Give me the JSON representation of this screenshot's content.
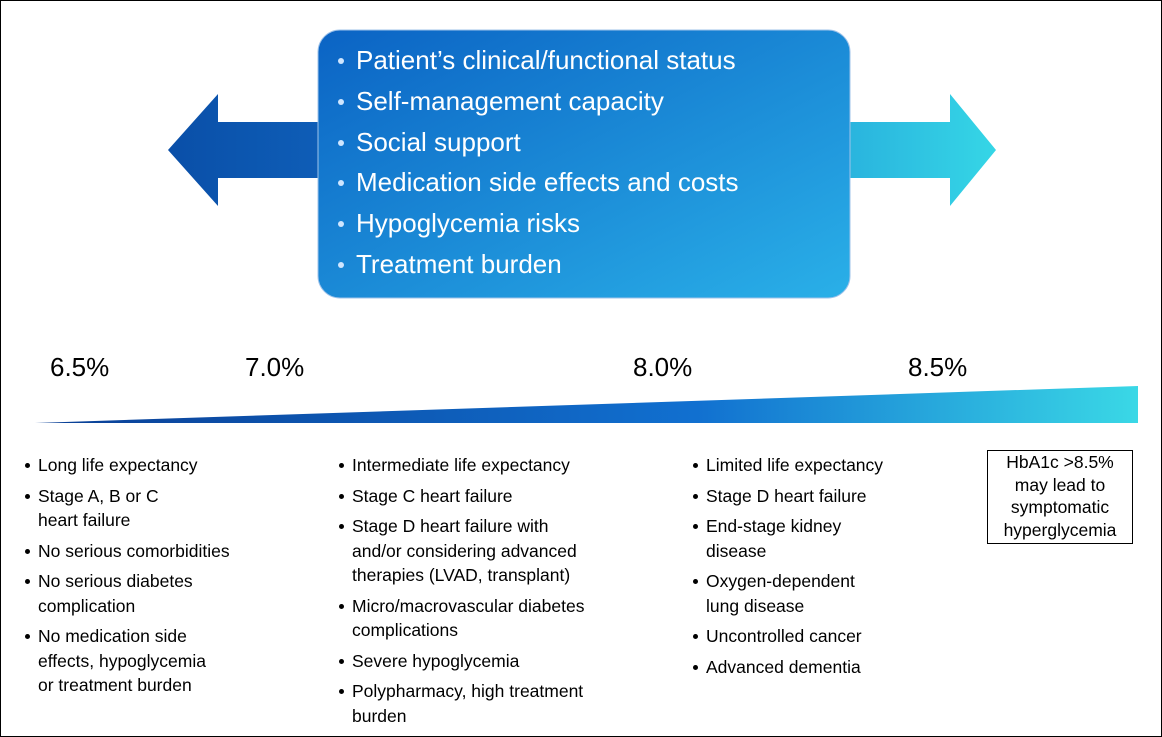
{
  "factors_box": {
    "items": [
      "Patient’s clinical/functional status",
      "Self-management capacity",
      "Social support",
      "Medication side effects and costs",
      "Hypoglycemia risks",
      "Treatment burden"
    ]
  },
  "thresholds": [
    "6.5%",
    "7.0%",
    "8.0%",
    "8.5%"
  ],
  "columns": [
    {
      "items": [
        [
          "Long life expectancy"
        ],
        [
          "Stage A, B or C",
          "heart failure"
        ],
        [
          "No serious comorbidities"
        ],
        [
          "No serious diabetes",
          "complication"
        ],
        [
          "No medication side",
          "effects, hypoglycemia",
          "or treatment burden"
        ]
      ]
    },
    {
      "items": [
        [
          "Intermediate life expectancy"
        ],
        [
          "Stage C heart failure"
        ],
        [
          "Stage D heart failure with",
          "and/or considering advanced",
          "therapies (LVAD, transplant)"
        ],
        [
          "Micro/macrovascular diabetes",
          "complications"
        ],
        [
          "Severe hypoglycemia"
        ],
        [
          "Polypharmacy, high treatment",
          "burden"
        ]
      ]
    },
    {
      "items": [
        [
          "Limited life expectancy"
        ],
        [
          "Stage D heart failure"
        ],
        [
          "End-stage kidney",
          "disease"
        ],
        [
          "Oxygen-dependent",
          "lung disease"
        ],
        [
          "Uncontrolled cancer"
        ],
        [
          "Advanced dementia"
        ]
      ]
    }
  ],
  "note": {
    "lines": [
      "HbA1c >8.5%",
      "may lead to",
      "symptomatic",
      "hyperglycemia"
    ]
  }
}
